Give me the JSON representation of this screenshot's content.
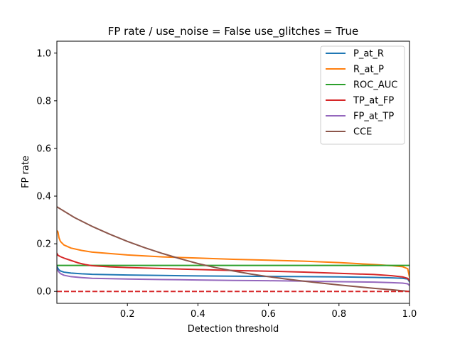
{
  "chart_data": {
    "type": "line",
    "title": "FP rate / use_noise = False  use_glitches = True",
    "xlabel": "Detection threshold",
    "ylabel": "FP rate",
    "xlim": [
      0.0,
      1.0
    ],
    "ylim": [
      -0.05,
      1.05
    ],
    "xticks": [
      0.2,
      0.4,
      0.6,
      0.8,
      1.0
    ],
    "xtick_labels": [
      "0.2",
      "0.4",
      "0.6",
      "0.8",
      "1.0"
    ],
    "yticks": [
      0.0,
      0.2,
      0.4,
      0.6,
      0.8,
      1.0
    ],
    "ytick_labels": [
      "0.0",
      "0.2",
      "0.4",
      "0.6",
      "0.8",
      "1.0"
    ],
    "grid": false,
    "legend_position": "top-right",
    "series": [
      {
        "name": "P_at_R",
        "color": "#1f77b4",
        "x": [
          0.0,
          0.005,
          0.01,
          0.02,
          0.04,
          0.07,
          0.1,
          0.2,
          0.3,
          0.4,
          0.5,
          0.6,
          0.7,
          0.8,
          0.9,
          0.95,
          0.98,
          0.995,
          1.0
        ],
        "y": [
          0.105,
          0.092,
          0.086,
          0.081,
          0.077,
          0.074,
          0.072,
          0.069,
          0.067,
          0.065,
          0.064,
          0.063,
          0.062,
          0.061,
          0.059,
          0.057,
          0.055,
          0.052,
          0.04
        ]
      },
      {
        "name": "R_at_P",
        "color": "#ff7f0e",
        "x": [
          0.0,
          0.003,
          0.006,
          0.01,
          0.02,
          0.04,
          0.07,
          0.1,
          0.2,
          0.3,
          0.4,
          0.5,
          0.6,
          0.7,
          0.8,
          0.9,
          0.95,
          0.98,
          0.995,
          1.0
        ],
        "y": [
          0.255,
          0.25,
          0.225,
          0.21,
          0.195,
          0.182,
          0.172,
          0.165,
          0.153,
          0.145,
          0.14,
          0.135,
          0.131,
          0.127,
          0.121,
          0.113,
          0.108,
          0.104,
          0.095,
          0.06
        ]
      },
      {
        "name": "ROC_AUC",
        "color": "#2ca02c",
        "x": [
          0.0,
          1.0
        ],
        "y": [
          0.109,
          0.109
        ]
      },
      {
        "name": "TP_at_FP",
        "color": "#d62728",
        "x": [
          0.0,
          0.003,
          0.01,
          0.02,
          0.04,
          0.06,
          0.08,
          0.1,
          0.15,
          0.2,
          0.3,
          0.4,
          0.5,
          0.6,
          0.7,
          0.8,
          0.9,
          0.95,
          0.98,
          0.995,
          1.0
        ],
        "y": [
          0.16,
          0.152,
          0.146,
          0.14,
          0.13,
          0.12,
          0.113,
          0.108,
          0.103,
          0.1,
          0.096,
          0.092,
          0.088,
          0.085,
          0.081,
          0.076,
          0.071,
          0.066,
          0.061,
          0.055,
          0.045
        ]
      },
      {
        "name": "FP_at_TP",
        "color": "#9467bd",
        "x": [
          0.0,
          0.005,
          0.01,
          0.02,
          0.04,
          0.07,
          0.1,
          0.2,
          0.3,
          0.4,
          0.5,
          0.6,
          0.7,
          0.8,
          0.9,
          0.95,
          0.98,
          0.995,
          1.0
        ],
        "y": [
          0.095,
          0.083,
          0.075,
          0.068,
          0.062,
          0.058,
          0.055,
          0.052,
          0.05,
          0.048,
          0.046,
          0.045,
          0.043,
          0.041,
          0.039,
          0.037,
          0.035,
          0.032,
          0.025
        ]
      },
      {
        "name": "CCE",
        "color": "#8c564b",
        "x": [
          0.0,
          0.05,
          0.1,
          0.15,
          0.2,
          0.25,
          0.3,
          0.35,
          0.4,
          0.45,
          0.5,
          0.55,
          0.6,
          0.65,
          0.7,
          0.75,
          0.8,
          0.85,
          0.9,
          0.95,
          1.0
        ],
        "y": [
          0.355,
          0.31,
          0.273,
          0.24,
          0.21,
          0.183,
          0.159,
          0.137,
          0.117,
          0.1,
          0.086,
          0.073,
          0.062,
          0.052,
          0.043,
          0.035,
          0.027,
          0.02,
          0.013,
          0.007,
          0.0
        ]
      }
    ],
    "reference_line": {
      "y": 0.0,
      "color": "#d62728",
      "style": "dashed"
    }
  }
}
